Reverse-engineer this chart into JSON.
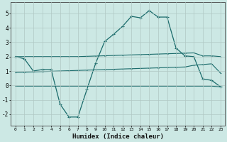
{
  "background_color": "#cce8e4",
  "grid_color": "#b0c8c4",
  "line_color": "#1a6b6b",
  "x_labels": [
    0,
    1,
    2,
    3,
    4,
    5,
    6,
    7,
    8,
    9,
    10,
    11,
    12,
    13,
    14,
    15,
    16,
    17,
    18,
    19,
    20,
    21,
    22,
    23
  ],
  "xlabel": "Humidex (Indice chaleur)",
  "ylim": [
    -2.8,
    5.8
  ],
  "yticks": [
    -2,
    -1,
    0,
    1,
    2,
    3,
    4,
    5
  ],
  "line1_y": [
    2.0,
    1.85,
    1.0,
    1.1,
    1.1,
    -1.3,
    -2.2,
    -2.2,
    -0.3,
    1.55,
    3.05,
    3.55,
    4.1,
    4.8,
    4.7,
    5.2,
    4.75,
    4.75,
    2.6,
    2.05,
    2.0,
    0.45,
    0.35,
    -0.1
  ],
  "line2_y": [
    2.0,
    2.0,
    2.0,
    2.0,
    2.0,
    2.0,
    2.0,
    2.0,
    2.02,
    2.04,
    2.06,
    2.08,
    2.1,
    2.12,
    2.14,
    2.16,
    2.18,
    2.2,
    2.22,
    2.24,
    2.26,
    2.05,
    2.05,
    2.0
  ],
  "line3_y": [
    0.9,
    0.92,
    0.94,
    0.96,
    0.98,
    1.0,
    1.02,
    1.04,
    1.06,
    1.08,
    1.1,
    1.12,
    1.14,
    1.16,
    1.18,
    1.2,
    1.22,
    1.24,
    1.26,
    1.28,
    1.4,
    1.45,
    1.5,
    0.85
  ],
  "line4_y": [
    -0.05,
    -0.05,
    -0.05,
    -0.05,
    -0.05,
    -0.05,
    -0.05,
    -0.05,
    -0.05,
    -0.05,
    -0.05,
    -0.05,
    -0.05,
    -0.05,
    -0.05,
    -0.05,
    -0.05,
    -0.05,
    -0.05,
    -0.05,
    -0.05,
    -0.05,
    -0.05,
    -0.1
  ]
}
